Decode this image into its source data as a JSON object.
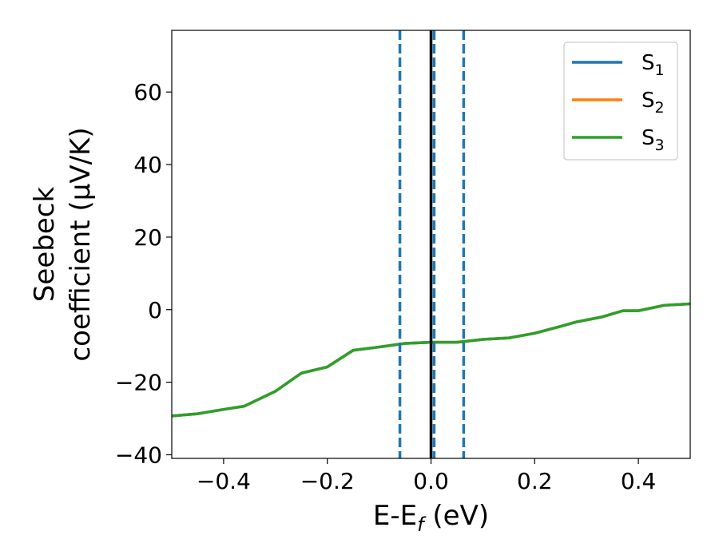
{
  "chart_data": {
    "type": "line",
    "xlabel": "E-E",
    "xlabel_sub": "f",
    "xlabel_unit": "(eV)",
    "ylabel_line1": "Seebeck",
    "ylabel_line2": "coefficient  (μV/K)",
    "xlim": [
      -0.5,
      0.5
    ],
    "ylim": [
      -41,
      77
    ],
    "xticks": [
      -0.4,
      -0.2,
      0.0,
      0.2,
      0.4
    ],
    "xtick_labels": [
      "−0.4",
      "−0.2",
      "0.0",
      "0.2",
      "0.4"
    ],
    "yticks": [
      -40,
      -20,
      0,
      20,
      40,
      60
    ],
    "ytick_labels": [
      "−40",
      "−20",
      "0",
      "20",
      "40",
      "60"
    ],
    "grid": false,
    "legend": "top-right",
    "series": [
      {
        "name": "S",
        "sub": "1",
        "color": "#1f77b4",
        "x": [
          -0.5,
          -0.45,
          -0.4,
          -0.36,
          -0.3,
          -0.25,
          -0.2,
          -0.15,
          -0.1,
          -0.05,
          0.0,
          0.05,
          0.1,
          0.15,
          0.2,
          0.25,
          0.28,
          0.33,
          0.37,
          0.4,
          0.45,
          0.5
        ],
        "y": [
          -29.3,
          -28.7,
          -27.5,
          -26.6,
          -22.5,
          -17.5,
          -15.8,
          -11.2,
          -10.3,
          -9.3,
          -9.0,
          -9.0,
          -8.2,
          -7.8,
          -6.5,
          -4.6,
          -3.4,
          -2.0,
          -0.3,
          -0.3,
          1.2,
          1.6
        ]
      },
      {
        "name": "S",
        "sub": "2",
        "color": "#ff7f0e",
        "x": [
          -0.5,
          -0.45,
          -0.4,
          -0.36,
          -0.3,
          -0.25,
          -0.2,
          -0.15,
          -0.1,
          -0.05,
          0.0,
          0.05,
          0.1,
          0.15,
          0.2,
          0.25,
          0.28,
          0.33,
          0.37,
          0.4,
          0.45,
          0.5
        ],
        "y": [
          -29.3,
          -28.7,
          -27.5,
          -26.6,
          -22.5,
          -17.5,
          -15.8,
          -11.2,
          -10.3,
          -9.3,
          -9.0,
          -9.0,
          -8.2,
          -7.8,
          -6.5,
          -4.6,
          -3.4,
          -2.0,
          -0.3,
          -0.3,
          1.2,
          1.6
        ]
      },
      {
        "name": "S",
        "sub": "3",
        "color": "#2ca02c",
        "x": [
          -0.5,
          -0.45,
          -0.4,
          -0.36,
          -0.3,
          -0.25,
          -0.2,
          -0.15,
          -0.1,
          -0.05,
          0.0,
          0.05,
          0.1,
          0.15,
          0.2,
          0.25,
          0.28,
          0.33,
          0.37,
          0.4,
          0.45,
          0.5
        ],
        "y": [
          -29.3,
          -28.7,
          -27.5,
          -26.6,
          -22.5,
          -17.5,
          -15.8,
          -11.2,
          -10.3,
          -9.3,
          -9.0,
          -9.0,
          -8.2,
          -7.8,
          -6.5,
          -4.6,
          -3.4,
          -2.0,
          -0.3,
          -0.3,
          1.2,
          1.6
        ]
      }
    ],
    "vlines": [
      {
        "x": 0.0,
        "color": "#000000",
        "style": "solid"
      },
      {
        "x": -0.06,
        "color": "#1f77b4",
        "style": "dashed"
      },
      {
        "x": 0.006,
        "color": "#1f77b4",
        "style": "dashed"
      },
      {
        "x": 0.063,
        "color": "#1f77b4",
        "style": "dashed"
      }
    ]
  }
}
